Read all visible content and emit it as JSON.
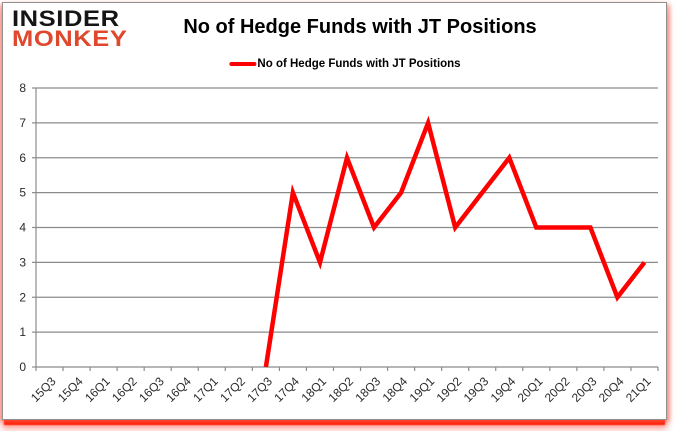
{
  "brand": {
    "line1": "INSIDER",
    "line2": "MONKEY",
    "line1_color": "#161414",
    "line2_color": "#e0482e"
  },
  "header": {
    "title": "No of Hedge Funds with JT Positions"
  },
  "legend": {
    "label": "No of Hedge Funds with JT Positions",
    "marker_color": "#ff0000"
  },
  "chart_data": {
    "type": "line",
    "title": "No of Hedge Funds with JT Positions",
    "categories": [
      "15Q3",
      "15Q4",
      "16Q1",
      "16Q2",
      "16Q3",
      "16Q4",
      "17Q1",
      "17Q2",
      "17Q3",
      "17Q4",
      "18Q1",
      "18Q2",
      "18Q3",
      "18Q4",
      "19Q1",
      "19Q2",
      "19Q3",
      "19Q4",
      "20Q1",
      "20Q2",
      "20Q3",
      "20Q4",
      "21Q1"
    ],
    "series": [
      {
        "name": "No of Hedge Funds with JT Positions",
        "color": "#ff0000",
        "values": [
          null,
          null,
          null,
          null,
          null,
          null,
          null,
          null,
          0,
          5,
          3,
          6,
          4,
          5,
          7,
          4,
          5,
          6,
          4,
          4,
          4,
          2,
          3
        ]
      }
    ],
    "ylim": [
      0,
      8
    ],
    "ytick_interval": 1,
    "grid": true,
    "legend_position": "top",
    "gridline_color": "#8b8b8b",
    "axis_color": "#8b8b8b",
    "tick_label_color": "#2b2b2b"
  }
}
